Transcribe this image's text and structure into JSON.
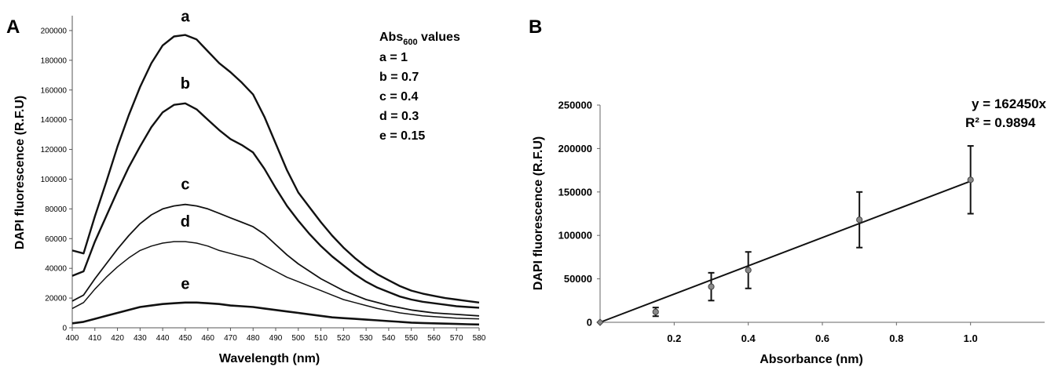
{
  "chart_data": [
    {
      "panel": "A",
      "type": "line",
      "xlabel": "Wavelength (nm)",
      "ylabel": "DAPI fluorescence (R.F.U)",
      "xlim": [
        400,
        580
      ],
      "ylim": [
        0,
        210000
      ],
      "xticks": [
        400,
        410,
        420,
        430,
        440,
        450,
        460,
        470,
        480,
        490,
        500,
        510,
        520,
        530,
        540,
        550,
        560,
        570,
        580
      ],
      "yticks": [
        0,
        20000,
        40000,
        60000,
        80000,
        100000,
        120000,
        140000,
        160000,
        180000,
        200000
      ],
      "x": [
        400,
        405,
        410,
        415,
        420,
        425,
        430,
        435,
        440,
        445,
        450,
        455,
        460,
        465,
        470,
        475,
        480,
        485,
        490,
        495,
        500,
        505,
        510,
        515,
        520,
        525,
        530,
        535,
        540,
        545,
        550,
        555,
        560,
        565,
        570,
        575,
        580
      ],
      "series": [
        {
          "name": "a",
          "values": [
            52000,
            50000,
            75000,
            98000,
            122000,
            143000,
            162000,
            178000,
            190000,
            196000,
            197000,
            194000,
            186000,
            178000,
            172000,
            165000,
            157000,
            142000,
            124000,
            106000,
            91000,
            81000,
            71000,
            62000,
            54000,
            47000,
            41000,
            36000,
            32000,
            28000,
            25000,
            23000,
            21500,
            20000,
            19000,
            18000,
            17000
          ]
        },
        {
          "name": "b",
          "values": [
            35000,
            38000,
            58000,
            75000,
            92000,
            108000,
            122000,
            135000,
            145000,
            150000,
            151000,
            147000,
            140000,
            133000,
            127000,
            123000,
            118000,
            107000,
            94000,
            82000,
            72000,
            63000,
            55000,
            48000,
            42000,
            36000,
            31000,
            27000,
            24000,
            21000,
            19000,
            17500,
            16500,
            15500,
            14500,
            14000,
            13500
          ]
        },
        {
          "name": "c",
          "values": [
            18000,
            22000,
            33000,
            43000,
            53000,
            62000,
            70000,
            76000,
            80000,
            82000,
            83000,
            82000,
            80000,
            77000,
            74000,
            71000,
            68000,
            63000,
            56000,
            49000,
            43000,
            38000,
            33000,
            29000,
            25000,
            22000,
            19000,
            17000,
            15000,
            13500,
            12000,
            11000,
            10000,
            9500,
            9000,
            8500,
            8000
          ]
        },
        {
          "name": "d",
          "values": [
            13000,
            17000,
            26000,
            34000,
            41000,
            47000,
            52000,
            55000,
            57000,
            58000,
            58000,
            57000,
            55000,
            52000,
            50000,
            48000,
            46000,
            42000,
            38000,
            34000,
            31000,
            28000,
            25000,
            22000,
            19000,
            17000,
            15000,
            13000,
            11500,
            10000,
            9000,
            8000,
            7500,
            7000,
            6500,
            6200,
            6000
          ]
        },
        {
          "name": "e",
          "values": [
            3000,
            4000,
            6000,
            8000,
            10000,
            12000,
            14000,
            15000,
            16000,
            16500,
            17000,
            17000,
            16500,
            16000,
            15000,
            14500,
            14000,
            13000,
            12000,
            11000,
            10000,
            9000,
            8000,
            7000,
            6500,
            6000,
            5500,
            5000,
            4500,
            4000,
            3500,
            3200,
            3000,
            2800,
            2600,
            2400,
            2200
          ]
        }
      ],
      "legend": {
        "title_main": "Abs",
        "title_sub": "600",
        "title_rest": " values",
        "entries": [
          "a = 1",
          "b = 0.7",
          "c = 0.4",
          "d = 0.3",
          "e = 0.15"
        ]
      },
      "curve_label_positions": [
        {
          "label": "a",
          "x": 450,
          "y": 206000
        },
        {
          "label": "b",
          "x": 450,
          "y": 161000
        },
        {
          "label": "c",
          "x": 450,
          "y": 93000
        },
        {
          "label": "d",
          "x": 450,
          "y": 68000
        },
        {
          "label": "e",
          "x": 450,
          "y": 26000
        }
      ]
    },
    {
      "panel": "B",
      "type": "scatter",
      "xlabel": "Absorbance (nm)",
      "ylabel": "DAPI fluorescence (R.F.U)",
      "xlim": [
        0,
        1.2
      ],
      "ylim": [
        0,
        250000
      ],
      "xticks": [
        0.2,
        0.4,
        0.6,
        0.8,
        1.0
      ],
      "xtick_labels": [
        "0.2",
        "0.4",
        "0.6",
        "0.8",
        "1.0"
      ],
      "yticks": [
        0,
        50000,
        100000,
        150000,
        200000,
        250000
      ],
      "points": [
        {
          "x": 0,
          "y": 0,
          "err": 0
        },
        {
          "x": 0.15,
          "y": 12000,
          "err": 5000
        },
        {
          "x": 0.3,
          "y": 41000,
          "err": 16000
        },
        {
          "x": 0.4,
          "y": 60000,
          "err": 21000
        },
        {
          "x": 0.7,
          "y": 118000,
          "err": 32000
        },
        {
          "x": 1.0,
          "y": 164000,
          "err": 39000
        }
      ],
      "trendline": {
        "slope": 162450,
        "x_range": [
          0,
          1.0
        ]
      },
      "equation": "y = 162450x",
      "r_squared": "R² = 0.9894"
    }
  ]
}
